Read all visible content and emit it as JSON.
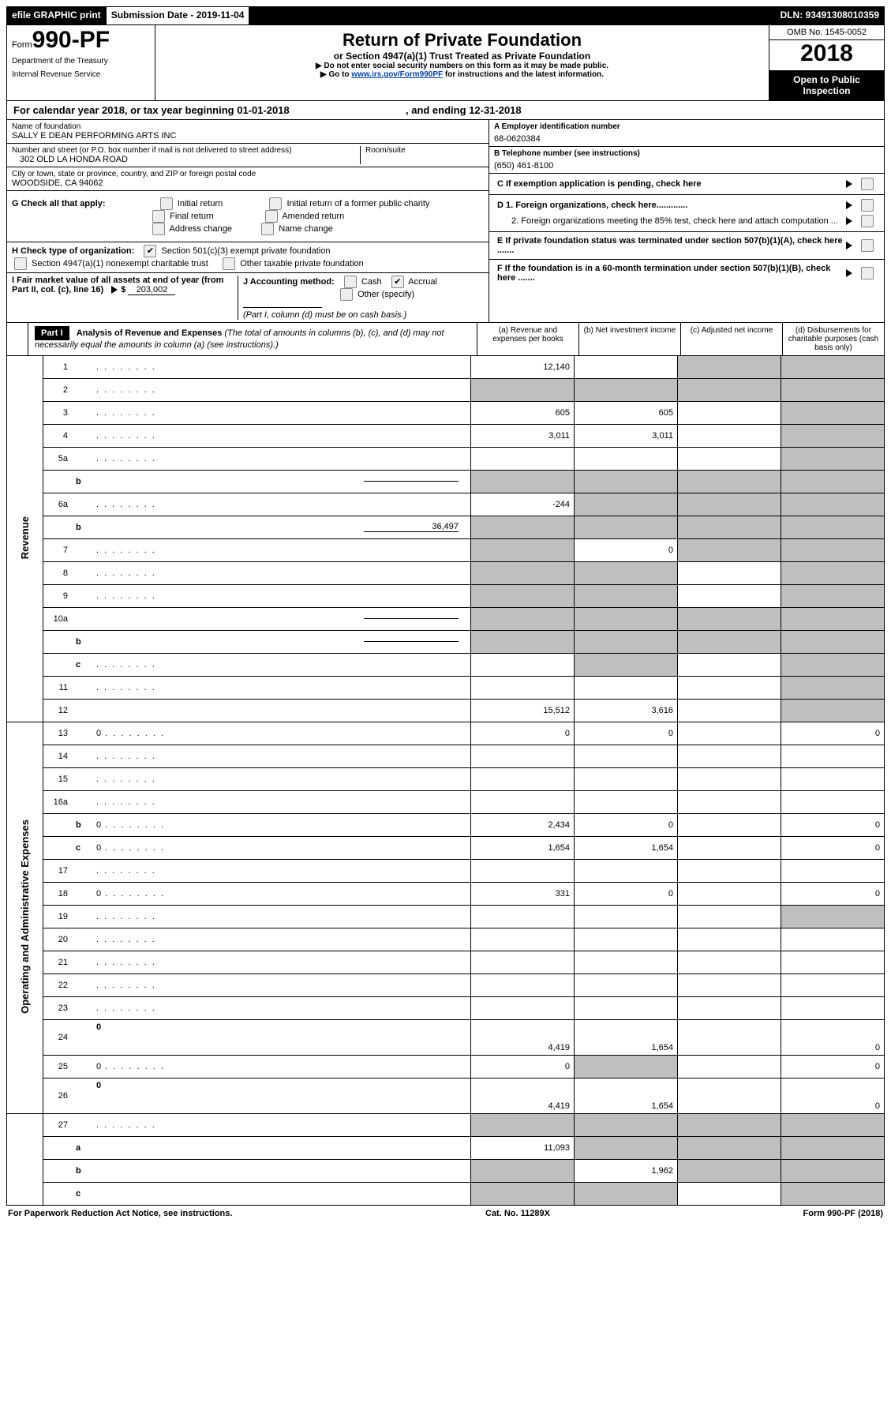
{
  "topbar": {
    "efile": "efile GRAPHIC print",
    "subdate": "Submission Date - 2019-11-04",
    "dln": "DLN: 93491308010359"
  },
  "header": {
    "form_prefix": "Form",
    "form_no": "990-PF",
    "dept1": "Department of the Treasury",
    "dept2": "Internal Revenue Service",
    "title": "Return of Private Foundation",
    "subtitle": "or Section 4947(a)(1) Trust Treated as Private Foundation",
    "note1": "▶ Do not enter social security numbers on this form as it may be made public.",
    "note2_pre": "▶ Go to ",
    "note2_link": "www.irs.gov/Form990PF",
    "note2_post": " for instructions and the latest information.",
    "omb": "OMB No. 1545-0052",
    "year": "2018",
    "open": "Open to Public Inspection"
  },
  "cal": {
    "text_a": "For calendar year 2018, or tax year beginning 01-01-2018",
    "text_b": ", and ending 12-31-2018"
  },
  "id": {
    "name_lbl": "Name of foundation",
    "name": "SALLY E DEAN PERFORMING ARTS INC",
    "addr_lbl": "Number and street (or P.O. box number if mail is not delivered to street address)",
    "addr": "302 OLD LA HONDA ROAD",
    "room_lbl": "Room/suite",
    "city_lbl": "City or town, state or province, country, and ZIP or foreign postal code",
    "city": "WOODSIDE, CA  94062",
    "a_lbl": "A Employer identification number",
    "a_val": "68-0620384",
    "b_lbl": "B Telephone number (see instructions)",
    "b_val": "(650) 461-8100",
    "c_lbl": "C  If exemption application is pending, check here",
    "d1_lbl": "D 1. Foreign organizations, check here.............",
    "d2_lbl": "2. Foreign organizations meeting the 85% test, check here and attach computation ...",
    "e_lbl": "E  If private foundation status was terminated under section 507(b)(1)(A), check here .......",
    "f_lbl": "F  If the foundation is in a 60-month termination under section 507(b)(1)(B), check here .......",
    "g_lbl": "G Check all that apply:",
    "g1": "Initial return",
    "g2": "Initial return of a former public charity",
    "g3": "Final return",
    "g4": "Amended return",
    "g5": "Address change",
    "g6": "Name change",
    "h_lbl": "H Check type of organization:",
    "h1": "Section 501(c)(3) exempt private foundation",
    "h2": "Section 4947(a)(1) nonexempt charitable trust",
    "h3": "Other taxable private foundation",
    "i_lbl": "I Fair market value of all assets at end of year (from Part II, col. (c), line 16)",
    "i_val": "203,002",
    "j_lbl": "J Accounting method:",
    "j1": "Cash",
    "j2": "Accrual",
    "j3": "Other (specify)",
    "j_note": "(Part I, column (d) must be on cash basis.)"
  },
  "part1": {
    "label": "Part I",
    "title": "Analysis of Revenue and Expenses",
    "title_note": "(The total of amounts in columns (b), (c), and (d) may not necessarily equal the amounts in column (a) (see instructions).)",
    "cols": {
      "a": "(a)    Revenue and expenses per books",
      "b": "(b)    Net investment income",
      "c": "(c)    Adjusted net income",
      "d": "(d)    Disbursements for charitable purposes (cash basis only)"
    }
  },
  "sidelabels": {
    "rev": "Revenue",
    "exp": "Operating and Administrative Expenses"
  },
  "rows": [
    {
      "n": "1",
      "s": "",
      "d": "",
      "a": "12,140",
      "b": "",
      "c": "",
      "sh": [
        "",
        "",
        "c",
        "d"
      ]
    },
    {
      "n": "2",
      "s": "",
      "d": "",
      "a": "",
      "b": "",
      "c": "",
      "sh": [
        "a",
        "b",
        "c",
        "d"
      ]
    },
    {
      "n": "3",
      "s": "",
      "d": "",
      "a": "605",
      "b": "605",
      "c": "",
      "sh": [
        "",
        "",
        "",
        "d"
      ]
    },
    {
      "n": "4",
      "s": "",
      "d": "",
      "a": "3,011",
      "b": "3,011",
      "c": "",
      "sh": [
        "",
        "",
        "",
        "d"
      ]
    },
    {
      "n": "5a",
      "s": "",
      "d": "",
      "a": "",
      "b": "",
      "c": "",
      "sh": [
        "",
        "",
        "",
        "d"
      ]
    },
    {
      "n": "",
      "s": "b",
      "d": "",
      "a": "",
      "b": "",
      "c": "",
      "sh": [
        "a",
        "b",
        "c",
        "d"
      ],
      "inline": true
    },
    {
      "n": "6a",
      "s": "",
      "d": "",
      "a": "-244",
      "b": "",
      "c": "",
      "sh": [
        "",
        "b",
        "c",
        "d"
      ]
    },
    {
      "n": "",
      "s": "b",
      "d": "",
      "a": "",
      "b": "",
      "c": "",
      "sh": [
        "a",
        "b",
        "c",
        "d"
      ],
      "inline": true,
      "inline_val": "36,497"
    },
    {
      "n": "7",
      "s": "",
      "d": "",
      "a": "",
      "b": "0",
      "c": "",
      "sh": [
        "a",
        "",
        "c",
        "d"
      ]
    },
    {
      "n": "8",
      "s": "",
      "d": "",
      "a": "",
      "b": "",
      "c": "",
      "sh": [
        "a",
        "b",
        "",
        "d"
      ]
    },
    {
      "n": "9",
      "s": "",
      "d": "",
      "a": "",
      "b": "",
      "c": "",
      "sh": [
        "a",
        "b",
        "",
        "d"
      ]
    },
    {
      "n": "10a",
      "s": "",
      "d": "",
      "a": "",
      "b": "",
      "c": "",
      "sh": [
        "a",
        "b",
        "c",
        "d"
      ],
      "inline": true
    },
    {
      "n": "",
      "s": "b",
      "d": "",
      "a": "",
      "b": "",
      "c": "",
      "sh": [
        "a",
        "b",
        "c",
        "d"
      ],
      "inline": true
    },
    {
      "n": "",
      "s": "c",
      "d": "",
      "a": "",
      "b": "",
      "c": "",
      "sh": [
        "",
        "b",
        "",
        "d"
      ]
    },
    {
      "n": "11",
      "s": "",
      "d": "",
      "a": "",
      "b": "",
      "c": "",
      "sh": [
        "",
        "",
        "",
        "d"
      ]
    },
    {
      "n": "12",
      "s": "",
      "d": "",
      "a": "15,512",
      "b": "3,616",
      "c": "",
      "sh": [
        "",
        "",
        "",
        "d"
      ],
      "bold": true
    }
  ],
  "exp_rows": [
    {
      "n": "13",
      "s": "",
      "d": "0",
      "a": "0",
      "b": "0",
      "c": ""
    },
    {
      "n": "14",
      "s": "",
      "d": "",
      "a": "",
      "b": "",
      "c": ""
    },
    {
      "n": "15",
      "s": "",
      "d": "",
      "a": "",
      "b": "",
      "c": ""
    },
    {
      "n": "16a",
      "s": "",
      "d": "",
      "a": "",
      "b": "",
      "c": ""
    },
    {
      "n": "",
      "s": "b",
      "d": "0",
      "a": "2,434",
      "b": "0",
      "c": ""
    },
    {
      "n": "",
      "s": "c",
      "d": "0",
      "a": "1,654",
      "b": "1,654",
      "c": ""
    },
    {
      "n": "17",
      "s": "",
      "d": "",
      "a": "",
      "b": "",
      "c": ""
    },
    {
      "n": "18",
      "s": "",
      "d": "0",
      "a": "331",
      "b": "0",
      "c": ""
    },
    {
      "n": "19",
      "s": "",
      "d": "",
      "a": "",
      "b": "",
      "c": "",
      "sh": [
        "",
        "",
        "",
        "d"
      ]
    },
    {
      "n": "20",
      "s": "",
      "d": "",
      "a": "",
      "b": "",
      "c": ""
    },
    {
      "n": "21",
      "s": "",
      "d": "",
      "a": "",
      "b": "",
      "c": ""
    },
    {
      "n": "22",
      "s": "",
      "d": "",
      "a": "",
      "b": "",
      "c": ""
    },
    {
      "n": "23",
      "s": "",
      "d": "",
      "a": "",
      "b": "",
      "c": ""
    },
    {
      "n": "24",
      "s": "",
      "d": "0",
      "a": "4,419",
      "b": "1,654",
      "c": "",
      "bold": true,
      "tall": true
    },
    {
      "n": "25",
      "s": "",
      "d": "0",
      "a": "0",
      "b": "",
      "c": "",
      "sh": [
        "",
        "b",
        "",
        ""
      ]
    },
    {
      "n": "26",
      "s": "",
      "d": "0",
      "a": "4,419",
      "b": "1,654",
      "c": "",
      "bold": true,
      "tall": true
    }
  ],
  "net_rows": [
    {
      "n": "27",
      "s": "",
      "d": "",
      "a": "",
      "b": "",
      "c": "",
      "sh": [
        "a",
        "b",
        "c",
        "d"
      ]
    },
    {
      "n": "",
      "s": "a",
      "d": "",
      "a": "11,093",
      "b": "",
      "c": "",
      "sh": [
        "",
        "b",
        "c",
        "d"
      ],
      "bold": true
    },
    {
      "n": "",
      "s": "b",
      "d": "",
      "a": "",
      "b": "1,962",
      "c": "",
      "sh": [
        "a",
        "",
        "c",
        "d"
      ],
      "bold": true
    },
    {
      "n": "",
      "s": "c",
      "d": "",
      "a": "",
      "b": "",
      "c": "",
      "sh": [
        "a",
        "b",
        "",
        "d"
      ],
      "bold": true
    }
  ],
  "footer": {
    "left": "For Paperwork Reduction Act Notice, see instructions.",
    "mid": "Cat. No. 11289X",
    "right": "Form 990-PF (2018)"
  }
}
